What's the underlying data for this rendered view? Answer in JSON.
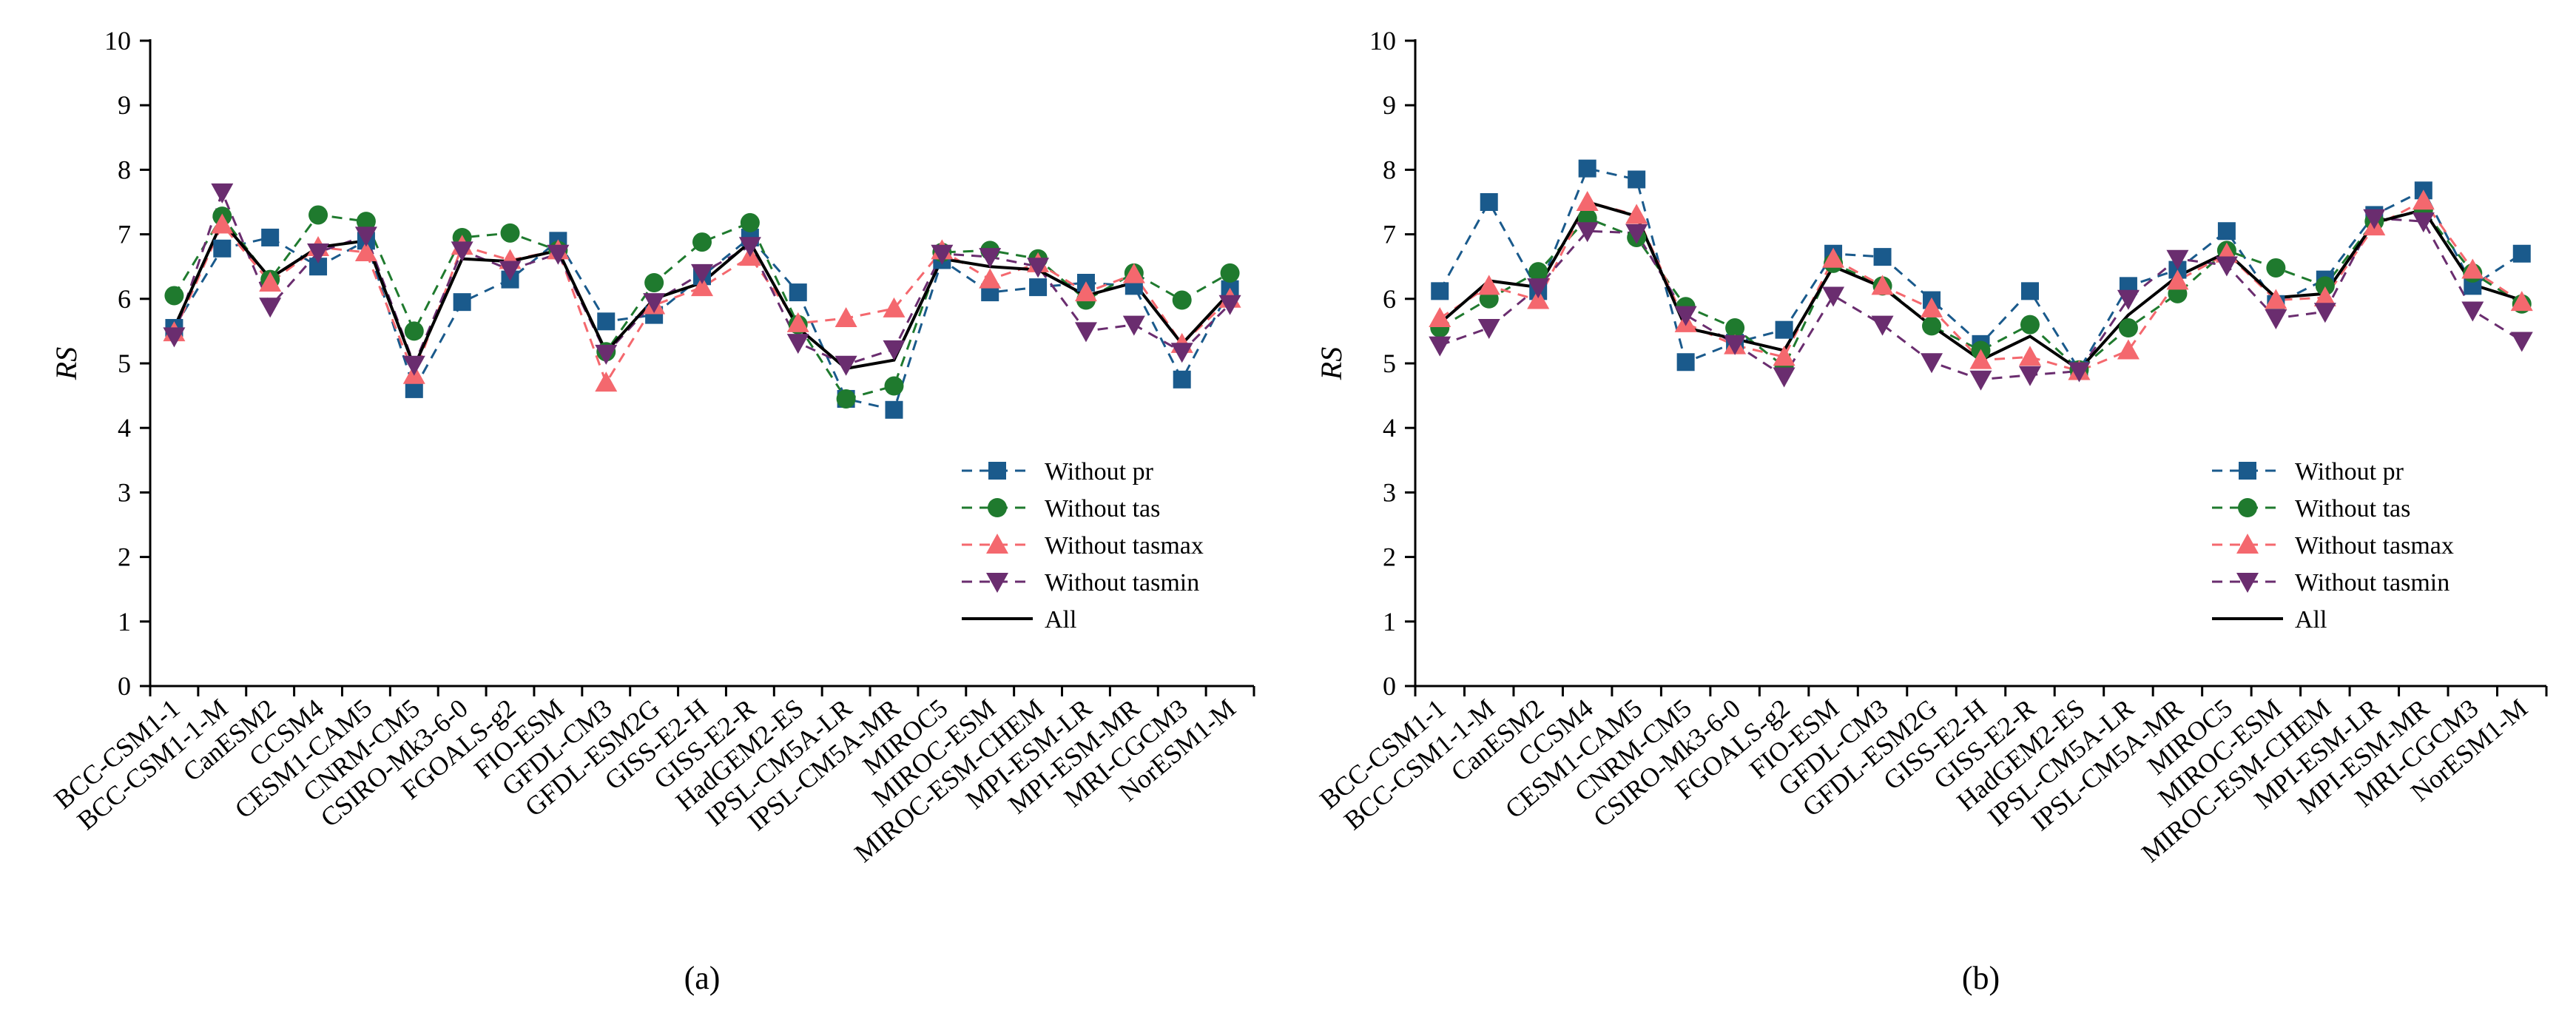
{
  "figure": {
    "categories": [
      "BCC-CSM1-1",
      "BCC-CSM1-1-M",
      "CanESM2",
      "CCSM4",
      "CESM1-CAM5",
      "CNRM-CM5",
      "CSIRO-Mk3-6-0",
      "FGOALS-g2",
      "FIO-ESM",
      "GFDL-CM3",
      "GFDL-ESM2G",
      "GISS-E2-H",
      "GISS-E2-R",
      "HadGEM2-ES",
      "IPSL-CM5A-LR",
      "IPSL-CM5A-MR",
      "MIROC5",
      "MIROC-ESM",
      "MIROC-ESM-CHEM",
      "MPI-ESM-LR",
      "MPI-ESM-MR",
      "MRI-CGCM3",
      "NorESM1-M"
    ],
    "ylabel": "RS",
    "yticks": [
      "0",
      "1",
      "2",
      "3",
      "4",
      "5",
      "6",
      "7",
      "8",
      "9",
      "10"
    ],
    "legend": [
      "Without pr",
      "Without tas",
      "Without tasmax",
      "Without tasmin",
      "All"
    ],
    "colors": {
      "pr": "#1a5a8c",
      "tas": "#1f7a2e",
      "tasmax": "#f4686e",
      "tasmin": "#6a2d6f",
      "all": "#000000"
    }
  },
  "chart_data": [
    {
      "type": "line",
      "panel_label": "(a)",
      "ylabel": "RS",
      "ylim": [
        0,
        10
      ],
      "legend_position": "bottom-right",
      "categories": [
        "BCC-CSM1-1",
        "BCC-CSM1-1-M",
        "CanESM2",
        "CCSM4",
        "CESM1-CAM5",
        "CNRM-CM5",
        "CSIRO-Mk3-6-0",
        "FGOALS-g2",
        "FIO-ESM",
        "GFDL-CM3",
        "GFDL-ESM2G",
        "GISS-E2-H",
        "GISS-E2-R",
        "HadGEM2-ES",
        "IPSL-CM5A-LR",
        "IPSL-CM5A-MR",
        "MIROC5",
        "MIROC-ESM",
        "MIROC-ESM-CHEM",
        "MPI-ESM-LR",
        "MPI-ESM-MR",
        "MRI-CGCM3",
        "NorESM1-M"
      ],
      "series": [
        {
          "name": "Without pr",
          "key": "pr",
          "marker": "square",
          "values": [
            5.55,
            6.78,
            6.95,
            6.5,
            6.9,
            4.6,
            5.95,
            6.3,
            6.9,
            5.65,
            5.75,
            6.35,
            6.95,
            6.1,
            4.45,
            4.28,
            6.6,
            6.1,
            6.18,
            6.25,
            6.2,
            4.75,
            6.15
          ]
        },
        {
          "name": "Without tas",
          "key": "tas",
          "marker": "circle",
          "values": [
            6.05,
            7.28,
            6.3,
            7.3,
            7.2,
            5.5,
            6.95,
            7.02,
            6.75,
            5.18,
            6.25,
            6.88,
            7.18,
            5.6,
            4.45,
            4.65,
            6.72,
            6.75,
            6.62,
            5.98,
            6.4,
            5.98,
            6.4
          ]
        },
        {
          "name": "Without tasmax",
          "key": "tasmax",
          "marker": "triangle-up",
          "values": [
            5.48,
            7.15,
            6.25,
            6.8,
            6.72,
            4.82,
            6.82,
            6.6,
            6.75,
            4.7,
            5.9,
            6.18,
            6.65,
            5.62,
            5.7,
            5.85,
            6.75,
            6.3,
            6.55,
            6.1,
            6.38,
            5.3,
            6.0
          ]
        },
        {
          "name": "Without tasmin",
          "key": "tasmin",
          "marker": "triangle-down",
          "values": [
            5.42,
            7.65,
            5.88,
            6.72,
            6.98,
            4.98,
            6.75,
            6.45,
            6.7,
            5.15,
            5.95,
            6.4,
            6.82,
            5.32,
            4.98,
            5.22,
            6.7,
            6.65,
            6.5,
            5.5,
            5.6,
            5.18,
            5.92
          ]
        },
        {
          "name": "All",
          "key": "all",
          "marker": "none",
          "values": [
            5.55,
            7.2,
            6.32,
            6.8,
            6.9,
            4.95,
            6.62,
            6.58,
            6.75,
            5.18,
            6.0,
            6.25,
            6.88,
            5.55,
            4.92,
            5.05,
            6.62,
            6.5,
            6.45,
            6.05,
            6.25,
            5.3,
            6.1
          ]
        }
      ]
    },
    {
      "type": "line",
      "panel_label": "(b)",
      "ylabel": "RS",
      "ylim": [
        0,
        10
      ],
      "legend_position": "bottom-right",
      "categories": [
        "BCC-CSM1-1",
        "BCC-CSM1-1-M",
        "CanESM2",
        "CCSM4",
        "CESM1-CAM5",
        "CNRM-CM5",
        "CSIRO-Mk3-6-0",
        "FGOALS-g2",
        "FIO-ESM",
        "GFDL-CM3",
        "GFDL-ESM2G",
        "GISS-E2-H",
        "GISS-E2-R",
        "HadGEM2-ES",
        "IPSL-CM5A-LR",
        "IPSL-CM5A-MR",
        "MIROC5",
        "MIROC-ESM",
        "MIROC-ESM-CHEM",
        "MPI-ESM-LR",
        "MPI-ESM-MR",
        "MRI-CGCM3",
        "NorESM1-M"
      ],
      "series": [
        {
          "name": "Without pr",
          "key": "pr",
          "marker": "square",
          "values": [
            6.12,
            7.5,
            6.12,
            8.02,
            7.85,
            5.02,
            5.32,
            5.52,
            6.7,
            6.65,
            5.98,
            5.3,
            6.12,
            4.9,
            6.2,
            6.45,
            7.05,
            5.92,
            6.3,
            7.3,
            7.68,
            6.2,
            6.7
          ]
        },
        {
          "name": "Without tas",
          "key": "tas",
          "marker": "circle",
          "values": [
            5.55,
            6.0,
            6.42,
            7.25,
            6.95,
            5.88,
            5.55,
            4.95,
            6.55,
            6.2,
            5.58,
            5.2,
            5.6,
            4.9,
            5.55,
            6.08,
            6.75,
            6.48,
            6.2,
            7.2,
            7.38,
            6.4,
            5.92
          ]
        },
        {
          "name": "Without tasmax",
          "key": "tasmax",
          "marker": "triangle-up",
          "values": [
            5.7,
            6.2,
            5.98,
            7.5,
            7.3,
            5.62,
            5.28,
            5.1,
            6.62,
            6.2,
            5.85,
            5.05,
            5.1,
            4.88,
            5.2,
            6.28,
            6.7,
            5.98,
            6.02,
            7.12,
            7.52,
            6.45,
            5.95
          ]
        },
        {
          "name": "Without tasmin",
          "key": "tasmin",
          "marker": "triangle-down",
          "values": [
            5.28,
            5.55,
            6.18,
            7.05,
            7.02,
            5.75,
            5.3,
            4.8,
            6.05,
            5.6,
            5.02,
            4.75,
            4.82,
            4.88,
            6.0,
            6.62,
            6.52,
            5.7,
            5.8,
            7.25,
            7.2,
            5.82,
            5.35
          ]
        },
        {
          "name": "All",
          "key": "all",
          "marker": "none",
          "values": [
            5.62,
            6.28,
            6.18,
            7.5,
            7.28,
            5.55,
            5.38,
            5.2,
            6.5,
            6.18,
            5.58,
            5.05,
            5.42,
            4.9,
            5.75,
            6.35,
            6.72,
            6.02,
            6.08,
            7.18,
            7.38,
            6.22,
            5.98
          ]
        }
      ]
    }
  ]
}
